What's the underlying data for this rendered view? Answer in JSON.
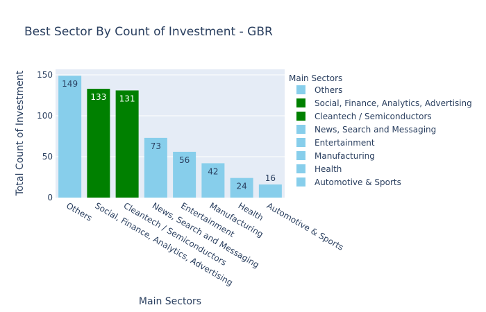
{
  "chart_data": {
    "type": "bar",
    "title": "Best Sector By Count of Investment - GBR",
    "xlabel": "Main Sectors",
    "ylabel": "Total Count of Investment",
    "legend_title": "Main Sectors",
    "legend_position": "right",
    "categories": [
      "Others",
      "Social, Finance, Analytics, Advertising",
      "Cleantech / Semiconductors",
      "News, Search and Messaging",
      "Entertainment",
      "Manufacturing",
      "Health",
      "Automotive & Sports"
    ],
    "values": [
      149,
      133,
      131,
      73,
      56,
      42,
      24,
      16
    ],
    "colors": [
      "#87ceeb",
      "#008000",
      "#008000",
      "#87ceeb",
      "#87ceeb",
      "#87ceeb",
      "#87ceeb",
      "#87ceeb"
    ],
    "label_colors": [
      "#2a3f5f",
      "#ffffff",
      "#ffffff",
      "#2a3f5f",
      "#2a3f5f",
      "#2a3f5f",
      "#2a3f5f",
      "#2a3f5f"
    ],
    "label_positions": [
      "inside",
      "inside",
      "inside",
      "inside",
      "inside",
      "inside",
      "inside",
      "outside"
    ],
    "yticks": [
      0,
      50,
      100,
      150
    ],
    "ylim": [
      0,
      156.8
    ],
    "grid": true,
    "plot_bg": "#e5ecf6",
    "grid_color": "#ffffff",
    "text_color": "#2a3f5f"
  }
}
